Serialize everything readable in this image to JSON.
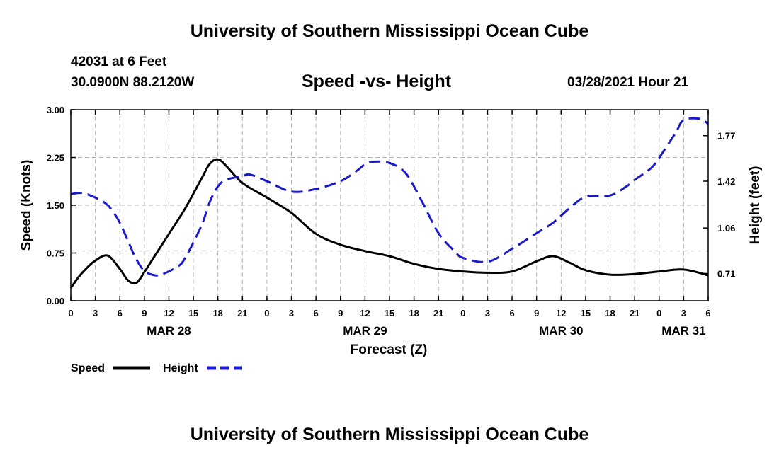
{
  "header": {
    "title_top": "University of Southern Mississippi Ocean Cube",
    "station": "42031 at 6 Feet",
    "coords": "30.0900N  88.2120W",
    "chart_title": "Speed -vs- Height",
    "datetime": "03/28/2021 Hour 21",
    "title_bottom": "University of Southern Mississippi Ocean Cube"
  },
  "colors": {
    "speed": "#000000",
    "height": "#1a1acc",
    "grid": "#b4b4b4"
  },
  "chart_data": {
    "type": "line",
    "title": "Speed -vs- Height",
    "xlabel": "Forecast (Z)",
    "ylabel": "Speed (Knots)",
    "y2label": "Height (feet)",
    "x_range_hours": [
      0,
      78
    ],
    "x_tick_step_hours": 3,
    "x_tick_labels": [
      "0",
      "3",
      "6",
      "9",
      "12",
      "15",
      "18",
      "21",
      "0",
      "3",
      "6",
      "9",
      "12",
      "15",
      "18",
      "21",
      "0",
      "3",
      "6",
      "9",
      "12",
      "15",
      "18",
      "21",
      "0",
      "3",
      "6"
    ],
    "day_labels": [
      {
        "label": "MAR 28",
        "hour": 12
      },
      {
        "label": "MAR 29",
        "hour": 36
      },
      {
        "label": "MAR 30",
        "hour": 60
      },
      {
        "label": "MAR 31",
        "hour": 75
      }
    ],
    "ylim": [
      0,
      3.0
    ],
    "y_ticks": [
      0.0,
      0.75,
      1.5,
      2.25,
      3.0
    ],
    "y_tick_labels": [
      "0.00",
      "0.75",
      "1.50",
      "2.25",
      "3.00"
    ],
    "y2lim": [
      0.5,
      1.97
    ],
    "y2_ticks": [
      0.71,
      1.06,
      1.42,
      1.77
    ],
    "y2_tick_labels": [
      "0.71",
      "1.06",
      "1.42",
      "1.77"
    ],
    "grid": true,
    "legend": {
      "position": "bottom-left",
      "entries": [
        "Speed",
        "Height"
      ]
    },
    "series": [
      {
        "name": "Speed",
        "axis": "left",
        "style": "solid",
        "x": [
          0,
          1,
          2,
          3,
          4.5,
          6,
          7,
          8,
          9,
          10,
          12,
          14,
          16,
          17,
          18,
          19,
          21,
          24,
          27,
          30,
          33,
          36,
          39,
          42,
          45,
          48,
          51,
          54,
          57,
          59,
          61,
          63,
          66,
          69,
          72,
          75,
          78
        ],
        "y": [
          0.2,
          0.38,
          0.52,
          0.63,
          0.71,
          0.5,
          0.32,
          0.28,
          0.45,
          0.65,
          1.05,
          1.45,
          1.92,
          2.15,
          2.22,
          2.12,
          1.85,
          1.62,
          1.38,
          1.05,
          0.88,
          0.78,
          0.7,
          0.58,
          0.5,
          0.46,
          0.44,
          0.46,
          0.62,
          0.7,
          0.6,
          0.48,
          0.41,
          0.42,
          0.46,
          0.49,
          0.4
        ]
      },
      {
        "name": "Height",
        "axis": "right",
        "style": "dashed",
        "x": [
          0,
          1,
          2,
          4,
          5,
          6,
          7,
          8,
          9,
          10,
          11,
          13,
          14,
          16,
          17,
          18,
          19,
          21,
          22,
          24,
          27,
          30,
          33,
          35,
          36,
          37,
          39,
          41,
          43,
          45,
          47,
          48,
          51,
          54,
          57,
          59,
          61,
          63,
          66,
          68,
          69,
          71,
          72,
          74,
          75,
          77,
          78
        ],
        "y": [
          1.32,
          1.33,
          1.32,
          1.26,
          1.2,
          1.1,
          0.96,
          0.82,
          0.73,
          0.7,
          0.7,
          0.76,
          0.83,
          1.08,
          1.26,
          1.38,
          1.43,
          1.46,
          1.47,
          1.42,
          1.34,
          1.36,
          1.42,
          1.5,
          1.55,
          1.57,
          1.56,
          1.48,
          1.26,
          1.02,
          0.88,
          0.83,
          0.8,
          0.9,
          1.02,
          1.1,
          1.21,
          1.3,
          1.31,
          1.38,
          1.43,
          1.52,
          1.6,
          1.79,
          1.89,
          1.9,
          1.86
        ]
      }
    ]
  }
}
